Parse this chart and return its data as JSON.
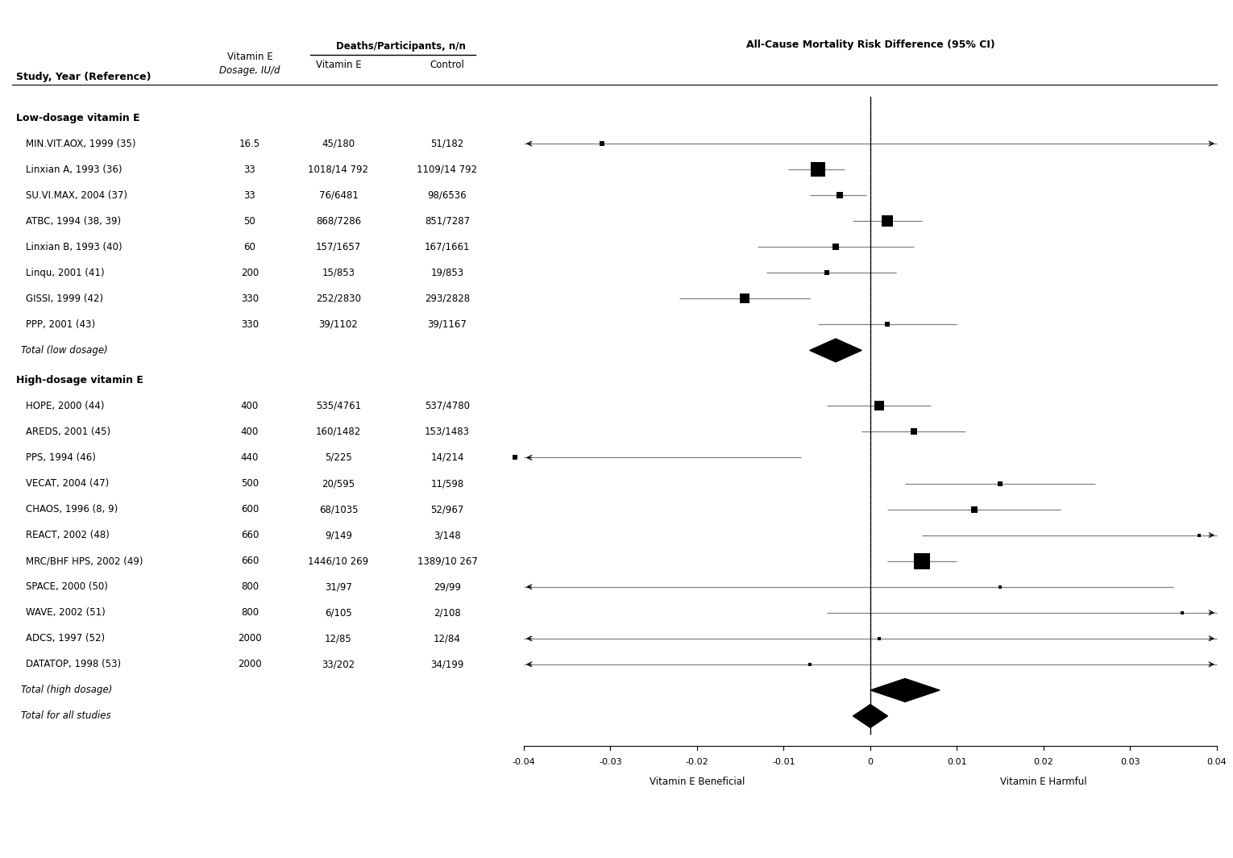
{
  "title": "All-Cause Mortality Risk Difference (95% CI)",
  "x_label_left": "Vitamin E Beneficial",
  "x_label_right": "Vitamin E Harmful",
  "xlim": [
    -0.04,
    0.04
  ],
  "xticks": [
    -0.04,
    -0.03,
    -0.02,
    -0.01,
    0,
    0.01,
    0.02,
    0.03,
    0.04
  ],
  "xtick_labels": [
    "-0.04",
    "-0.03",
    "-0.02",
    "-0.01",
    "0",
    "0.01",
    "0.02",
    "0.03",
    "0.04"
  ],
  "studies": [
    {
      "label": "MIN.VIT.AOX, 1999 (35)",
      "dosage": "16.5",
      "vit_e": "45/180",
      "control": "51/182",
      "est": -0.031,
      "lo": -0.09,
      "hi": 0.09,
      "weight": 1.0,
      "group": "low",
      "arrow_left": true,
      "arrow_right": true
    },
    {
      "label": "Linxian A, 1993 (36)",
      "dosage": "33",
      "vit_e": "1018/14 792",
      "control": "1109/14 792",
      "est": -0.006,
      "lo": -0.0095,
      "hi": -0.003,
      "weight": 14.0,
      "group": "low",
      "arrow_left": false,
      "arrow_right": false
    },
    {
      "label": "SU.VI.MAX, 2004 (37)",
      "dosage": "33",
      "vit_e": "76/6481",
      "control": "98/6536",
      "est": -0.0035,
      "lo": -0.007,
      "hi": -0.0005,
      "weight": 4.0,
      "group": "low",
      "arrow_left": false,
      "arrow_right": false
    },
    {
      "label": "ATBC, 1994 (38, 39)",
      "dosage": "50",
      "vit_e": "868/7286",
      "control": "851/7287",
      "est": 0.002,
      "lo": -0.002,
      "hi": 0.006,
      "weight": 10.0,
      "group": "low",
      "arrow_left": false,
      "arrow_right": false
    },
    {
      "label": "Linxian B, 1993 (40)",
      "dosage": "60",
      "vit_e": "157/1657",
      "control": "167/1661",
      "est": -0.004,
      "lo": -0.013,
      "hi": 0.005,
      "weight": 3.0,
      "group": "low",
      "arrow_left": false,
      "arrow_right": false
    },
    {
      "label": "Linqu, 2001 (41)",
      "dosage": "200",
      "vit_e": "15/853",
      "control": "19/853",
      "est": -0.005,
      "lo": -0.012,
      "hi": 0.003,
      "weight": 1.5,
      "group": "low",
      "arrow_left": false,
      "arrow_right": false
    },
    {
      "label": "GISSI, 1999 (42)",
      "dosage": "330",
      "vit_e": "252/2830",
      "control": "293/2828",
      "est": -0.0145,
      "lo": -0.022,
      "hi": -0.007,
      "weight": 8.0,
      "group": "low",
      "arrow_left": false,
      "arrow_right": false
    },
    {
      "label": "PPP, 2001 (43)",
      "dosage": "330",
      "vit_e": "39/1102",
      "control": "39/1167",
      "est": 0.002,
      "lo": -0.006,
      "hi": 0.01,
      "weight": 2.5,
      "group": "low",
      "arrow_left": false,
      "arrow_right": false
    },
    {
      "label": "Total (low dosage)",
      "dosage": "",
      "vit_e": "",
      "control": "",
      "est": -0.004,
      "lo": -0.007,
      "hi": -0.001,
      "weight": null,
      "group": "low_total",
      "arrow_left": false,
      "arrow_right": false
    },
    {
      "label": "HOPE, 2000 (44)",
      "dosage": "400",
      "vit_e": "535/4761",
      "control": "537/4780",
      "est": 0.001,
      "lo": -0.005,
      "hi": 0.007,
      "weight": 9.0,
      "group": "high",
      "arrow_left": false,
      "arrow_right": false
    },
    {
      "label": "AREDS, 2001 (45)",
      "dosage": "400",
      "vit_e": "160/1482",
      "control": "153/1483",
      "est": 0.005,
      "lo": -0.001,
      "hi": 0.011,
      "weight": 5.0,
      "group": "high",
      "arrow_left": false,
      "arrow_right": false
    },
    {
      "label": "PPS, 1994 (46)",
      "dosage": "440",
      "vit_e": "5/225",
      "control": "14/214",
      "est": -0.041,
      "lo": -0.09,
      "hi": -0.008,
      "weight": 1.0,
      "group": "high",
      "arrow_left": true,
      "arrow_right": false
    },
    {
      "label": "VECAT, 2004 (47)",
      "dosage": "500",
      "vit_e": "20/595",
      "control": "11/598",
      "est": 0.015,
      "lo": 0.004,
      "hi": 0.026,
      "weight": 1.5,
      "group": "high",
      "arrow_left": false,
      "arrow_right": false
    },
    {
      "label": "CHAOS, 1996 (8, 9)",
      "dosage": "600",
      "vit_e": "68/1035",
      "control": "52/967",
      "est": 0.012,
      "lo": 0.002,
      "hi": 0.022,
      "weight": 3.0,
      "group": "high",
      "arrow_left": false,
      "arrow_right": false
    },
    {
      "label": "REACT, 2002 (48)",
      "dosage": "660",
      "vit_e": "9/149",
      "control": "3/148",
      "est": 0.038,
      "lo": 0.006,
      "hi": 0.09,
      "weight": 0.5,
      "group": "high",
      "arrow_left": false,
      "arrow_right": true
    },
    {
      "label": "MRC/BHF HPS, 2002 (49)",
      "dosage": "660",
      "vit_e": "1446/10 269",
      "control": "1389/10 267",
      "est": 0.006,
      "lo": 0.002,
      "hi": 0.01,
      "weight": 16.0,
      "group": "high",
      "arrow_left": false,
      "arrow_right": false
    },
    {
      "label": "SPACE, 2000 (50)",
      "dosage": "800",
      "vit_e": "31/97",
      "control": "29/99",
      "est": 0.015,
      "lo": -0.09,
      "hi": 0.035,
      "weight": 0.7,
      "group": "high",
      "arrow_left": true,
      "arrow_right": false
    },
    {
      "label": "WAVE, 2002 (51)",
      "dosage": "800",
      "vit_e": "6/105",
      "control": "2/108",
      "est": 0.036,
      "lo": -0.005,
      "hi": 0.09,
      "weight": 0.5,
      "group": "high",
      "arrow_left": false,
      "arrow_right": true
    },
    {
      "label": "ADCS, 1997 (52)",
      "dosage": "2000",
      "vit_e": "12/85",
      "control": "12/84",
      "est": 0.001,
      "lo": -0.09,
      "hi": 0.09,
      "weight": 0.3,
      "group": "high",
      "arrow_left": true,
      "arrow_right": true
    },
    {
      "label": "DATATOP, 1998 (53)",
      "dosage": "2000",
      "vit_e": "33/202",
      "control": "34/199",
      "est": -0.007,
      "lo": -0.09,
      "hi": 0.09,
      "weight": 0.3,
      "group": "high",
      "arrow_left": true,
      "arrow_right": true
    },
    {
      "label": "Total (high dosage)",
      "dosage": "",
      "vit_e": "",
      "control": "",
      "est": 0.004,
      "lo": 0.0,
      "hi": 0.008,
      "weight": null,
      "group": "high_total",
      "arrow_left": false,
      "arrow_right": false
    },
    {
      "label": "Total for all studies",
      "dosage": "",
      "vit_e": "",
      "control": "",
      "est": 0.0,
      "lo": -0.002,
      "hi": 0.002,
      "weight": null,
      "group": "all_total",
      "arrow_left": false,
      "arrow_right": false
    }
  ]
}
